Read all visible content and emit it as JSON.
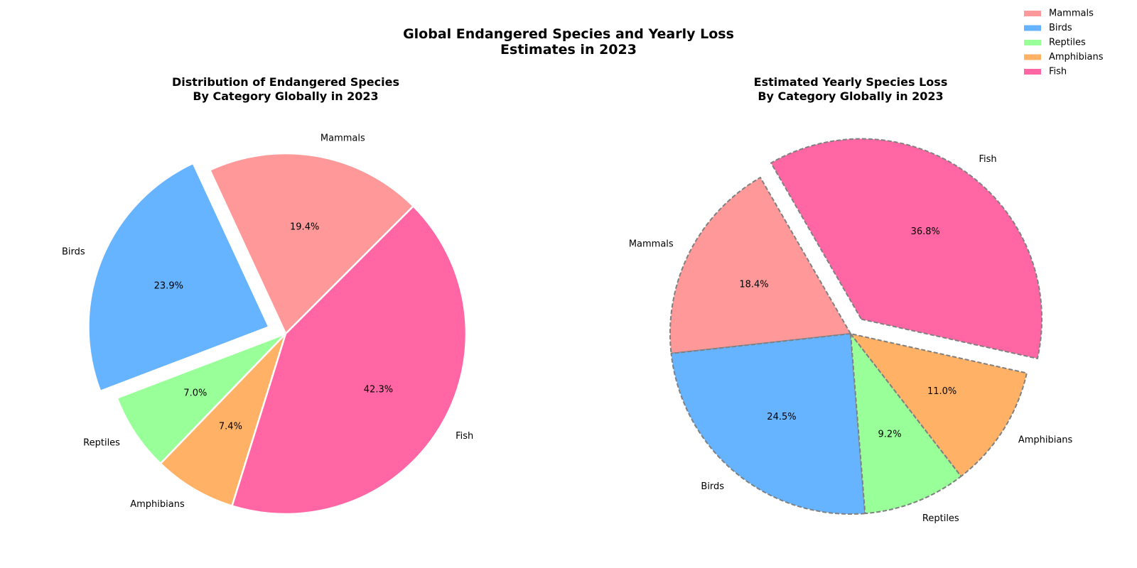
{
  "figure": {
    "suptitle_line1": "Global Endangered Species and Yearly Loss",
    "suptitle_line2": "Estimates in 2023"
  },
  "chart_data": [
    {
      "type": "pie",
      "title_line1": "Distribution of Endangered Species",
      "title_line2": "By Category Globally in 2023",
      "categories": [
        "Mammals",
        "Birds",
        "Reptiles",
        "Amphibians",
        "Fish"
      ],
      "values": [
        19.4,
        23.9,
        7.0,
        7.4,
        42.3
      ],
      "value_labels": [
        "19.4%",
        "23.9%",
        "7.0%",
        "7.4%",
        "42.3%"
      ],
      "exploded": [
        "Birds"
      ],
      "colors": [
        "#ff9999",
        "#66b3ff",
        "#99ff99",
        "#ffb266",
        "#ff66a3"
      ],
      "edge_color": "#ffffff",
      "edge_style": "solid"
    },
    {
      "type": "pie",
      "title_line1": "Estimated Yearly Species Loss",
      "title_line2": "By Category Globally in 2023",
      "categories": [
        "Mammals",
        "Birds",
        "Reptiles",
        "Amphibians",
        "Fish"
      ],
      "values": [
        18.4,
        24.5,
        9.2,
        11.0,
        36.8
      ],
      "value_labels": [
        "18.4%",
        "24.5%",
        "9.2%",
        "11.0%",
        "36.8%"
      ],
      "exploded": [
        "Fish"
      ],
      "colors": [
        "#ff9999",
        "#66b3ff",
        "#99ff99",
        "#ffb266",
        "#ff66a3"
      ],
      "edge_color": "#808080",
      "edge_style": "dashed"
    }
  ],
  "legend": {
    "placement": "top-right",
    "entries": [
      "Mammals",
      "Birds",
      "Reptiles",
      "Amphibians",
      "Fish"
    ],
    "colors": [
      "#ff9999",
      "#66b3ff",
      "#99ff99",
      "#ffb266",
      "#ff66a3"
    ]
  }
}
